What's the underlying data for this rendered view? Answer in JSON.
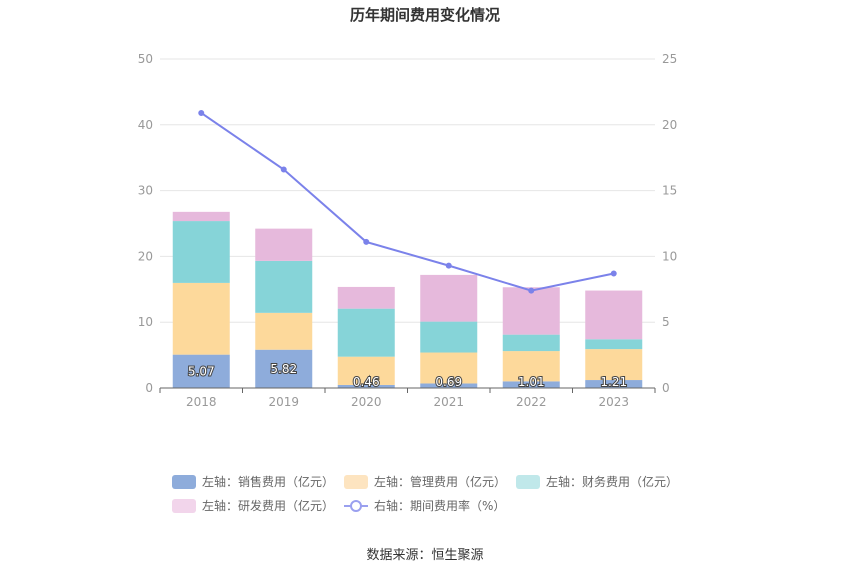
{
  "chart_data": {
    "type": "bar",
    "title": "历年期间费用变化情况",
    "categories": [
      "2018",
      "2019",
      "2020",
      "2021",
      "2022",
      "2023"
    ],
    "left_axis": {
      "ylim": [
        0,
        50
      ],
      "ticks": [
        0,
        10,
        20,
        30,
        40,
        50
      ]
    },
    "right_axis": {
      "ylim": [
        0,
        25
      ],
      "ticks": [
        0,
        5,
        10,
        15,
        20,
        25
      ]
    },
    "series": [
      {
        "name": "左轴：销售费用（亿元）",
        "axis": "left",
        "kind": "bar",
        "color": "#8eacdb",
        "values": [
          5.07,
          5.82,
          0.46,
          0.69,
          1.01,
          1.21
        ],
        "labels": [
          "5.07",
          "5.82",
          "0.46",
          "0.69",
          "1.01",
          "1.21"
        ]
      },
      {
        "name": "左轴：管理费用（亿元）",
        "axis": "left",
        "kind": "bar",
        "color": "#fdd99b",
        "values": [
          10.9,
          5.6,
          4.3,
          4.7,
          4.6,
          4.7
        ]
      },
      {
        "name": "左轴：财务费用（亿元）",
        "axis": "left",
        "kind": "bar",
        "color": "#86d4d8",
        "values": [
          9.4,
          7.9,
          7.3,
          4.7,
          2.5,
          1.5
        ]
      },
      {
        "name": "左轴：研发费用（亿元）",
        "axis": "left",
        "kind": "bar",
        "color": "#e6b9dc",
        "values": [
          1.4,
          4.9,
          3.3,
          7.1,
          7.2,
          7.4
        ]
      },
      {
        "name": "右轴：期间费用率（%）",
        "axis": "right",
        "kind": "line",
        "color": "#7b82ea",
        "values": [
          20.9,
          16.6,
          11.1,
          9.3,
          7.4,
          8.7
        ]
      }
    ],
    "grid": true,
    "legend_position": "bottom"
  },
  "legend": {
    "items": [
      {
        "label": "左轴：销售费用（亿元）",
        "color": "#8eacdb",
        "kind": "bar"
      },
      {
        "label": "左轴：管理费用（亿元）",
        "color": "#fde4c0",
        "kind": "bar"
      },
      {
        "label": "左轴：财务费用（亿元）",
        "color": "#c0e8ea",
        "kind": "bar"
      },
      {
        "label": "左轴：研发费用（亿元）",
        "color": "#f2d5eb",
        "kind": "bar"
      },
      {
        "label": "右轴：期间费用率（%）",
        "color": "#9aa0ef",
        "kind": "line"
      }
    ]
  },
  "source": "数据来源：恒生聚源"
}
